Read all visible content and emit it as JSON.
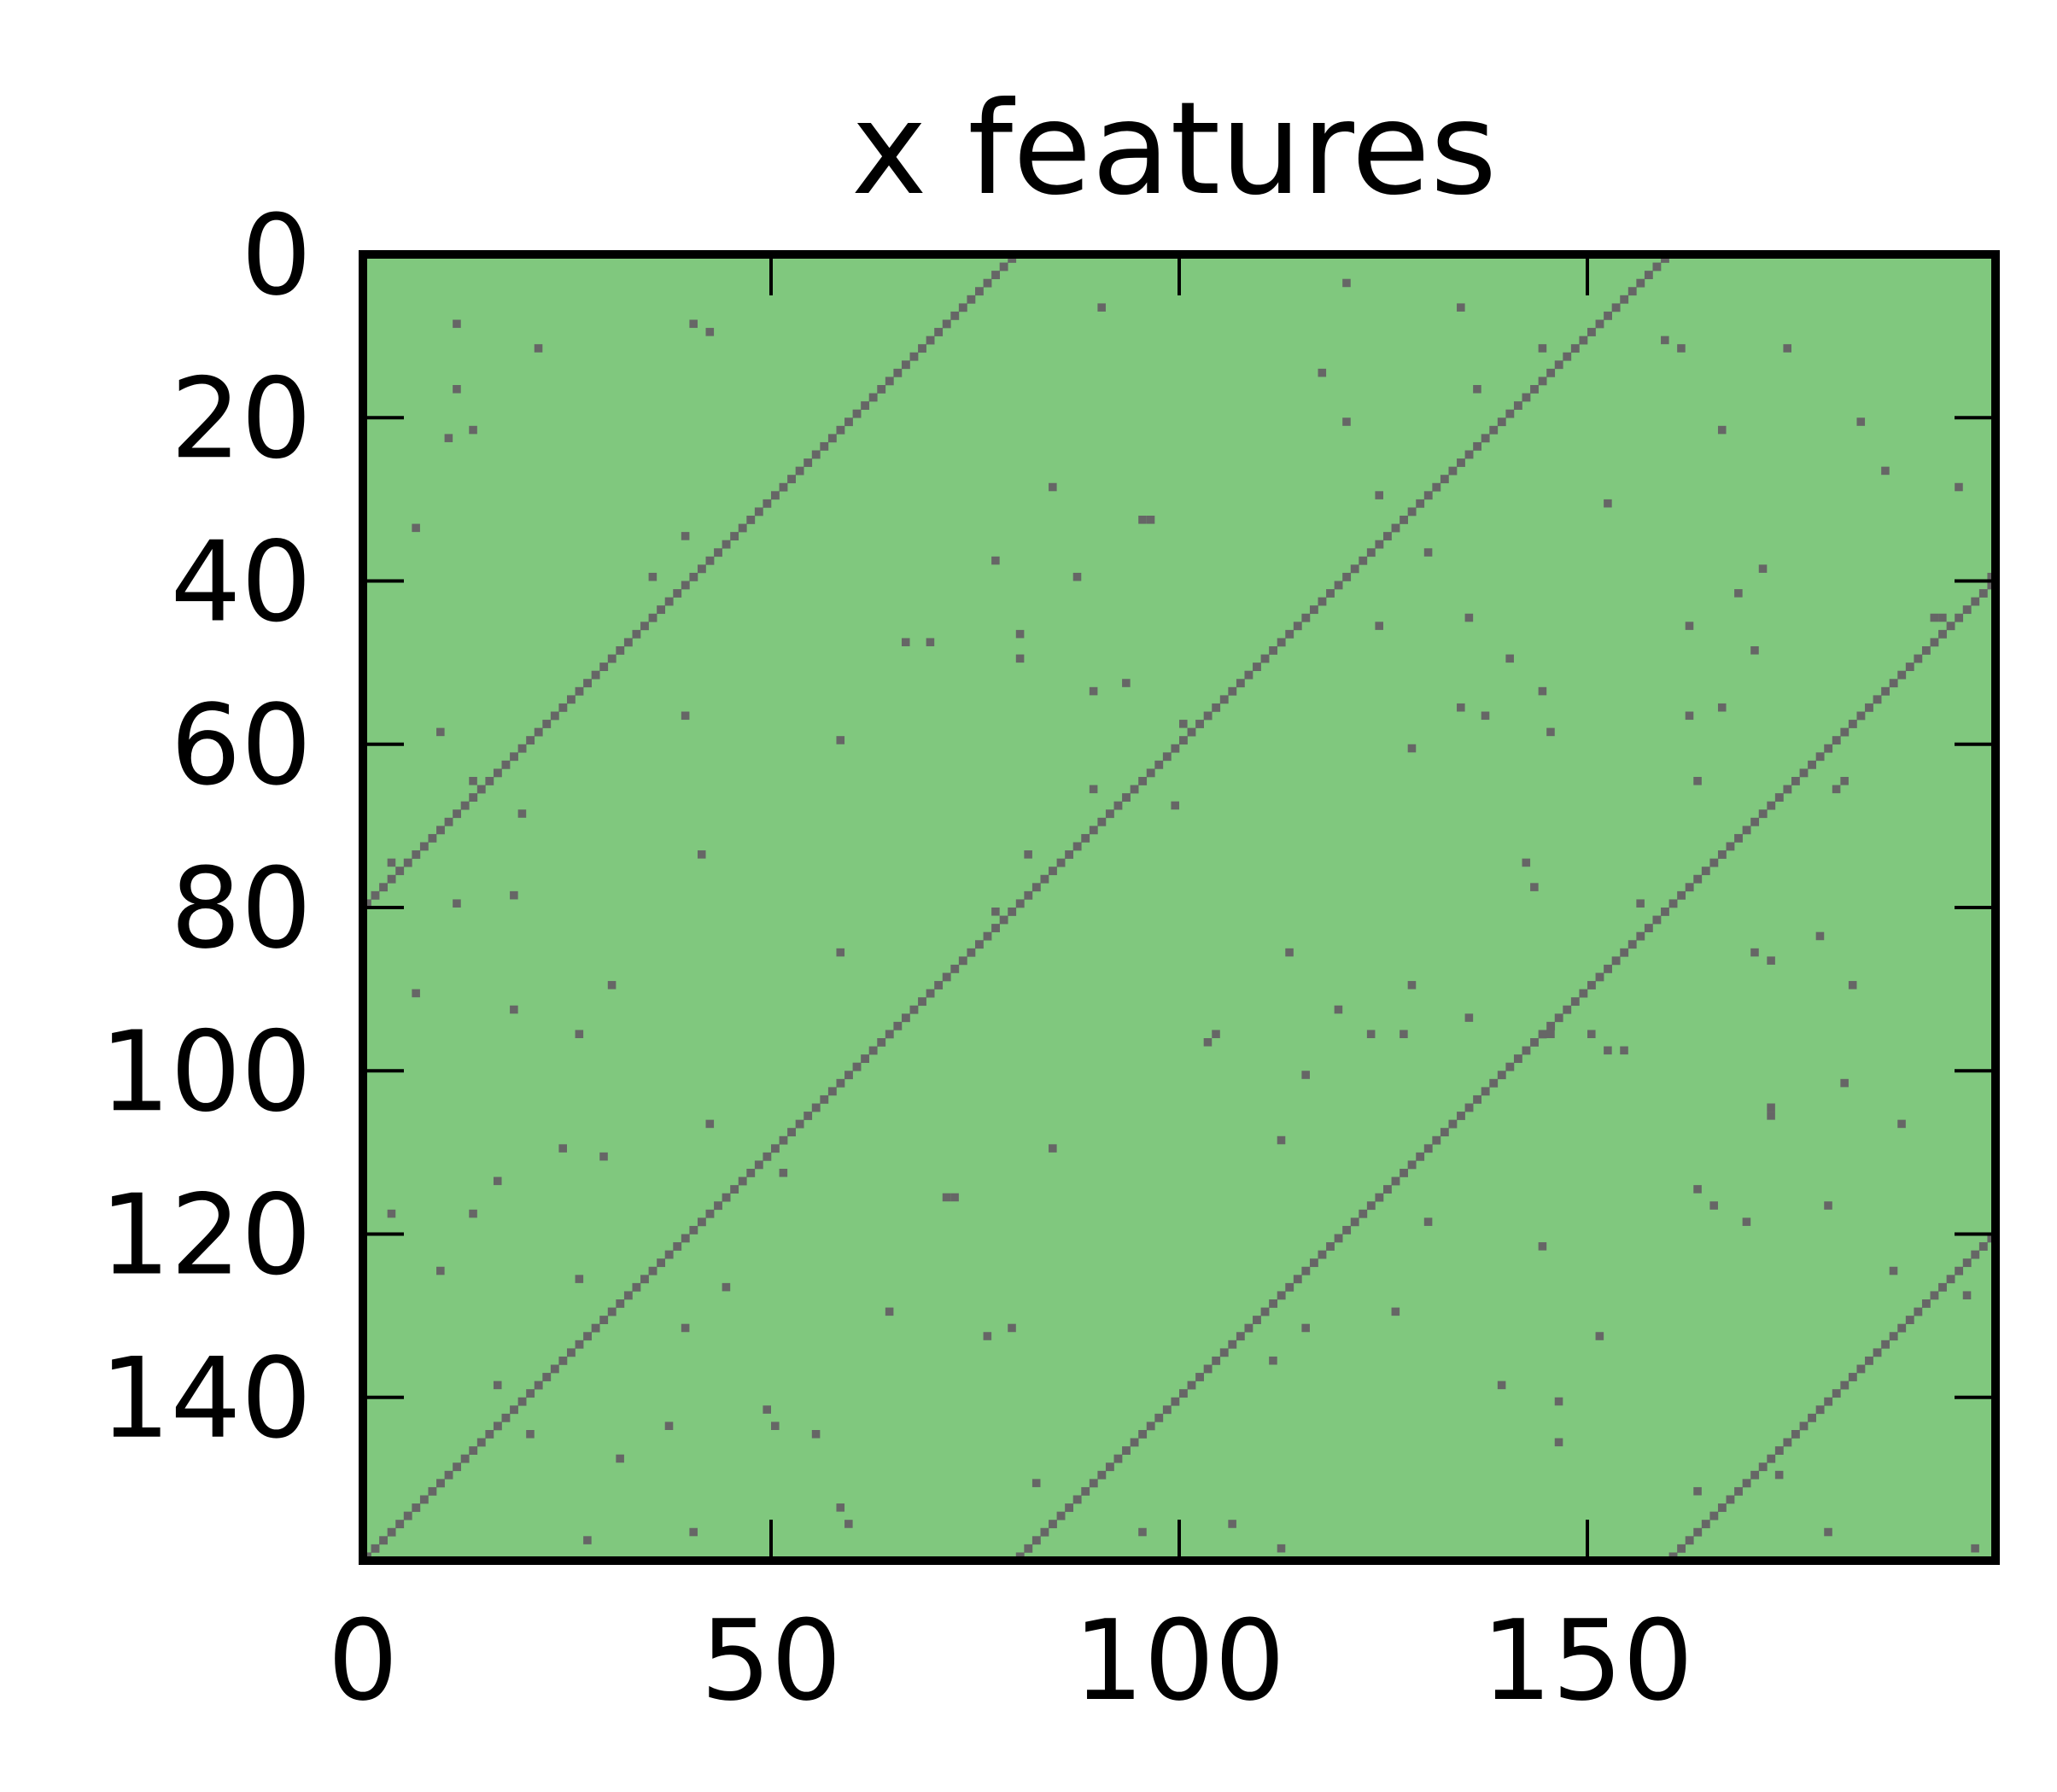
{
  "chart_data": {
    "type": "heatmap",
    "title": "x features",
    "xlabel": "",
    "ylabel": "",
    "x_range": [
      0,
      200
    ],
    "y_range": [
      0,
      160
    ],
    "y_inverted": true,
    "grid": false,
    "x_ticks": [
      {
        "value": 0,
        "label": "0"
      },
      {
        "value": 50,
        "label": "50"
      },
      {
        "value": 100,
        "label": "100"
      },
      {
        "value": 150,
        "label": "150"
      }
    ],
    "y_ticks": [
      {
        "value": 0,
        "label": "0"
      },
      {
        "value": 20,
        "label": "20"
      },
      {
        "value": 40,
        "label": "40"
      },
      {
        "value": 60,
        "label": "60"
      },
      {
        "value": 80,
        "label": "80"
      },
      {
        "value": 100,
        "label": "100"
      },
      {
        "value": 120,
        "label": "120"
      },
      {
        "value": 140,
        "label": "140"
      }
    ],
    "background_color": "#80c87e",
    "cell_color": "#666666",
    "diagonal_bands": [
      {
        "row_start": 0,
        "row_end": 79,
        "col_at_row0": 79,
        "slope": -1
      },
      {
        "row_start": 0,
        "row_end": 159,
        "col_at_row0": 159,
        "slope": -1
      },
      {
        "row_start": 40,
        "row_end": 159,
        "col_at_row0": 239,
        "slope": -1
      },
      {
        "row_start": 120,
        "row_end": 159,
        "col_at_row0": 319,
        "slope": -1
      }
    ],
    "scatter_cells": [
      [
        11,
        8
      ],
      [
        21,
        11
      ],
      [
        40,
        8
      ],
      [
        42,
        9
      ],
      [
        90,
        6
      ],
      [
        120,
        3
      ],
      [
        134,
        6
      ],
      [
        159,
        10
      ],
      [
        161,
        11
      ],
      [
        174,
        11
      ],
      [
        11,
        16
      ],
      [
        10,
        22
      ],
      [
        13,
        21
      ],
      [
        117,
        14
      ],
      [
        120,
        20
      ],
      [
        136,
        16
      ],
      [
        144,
        11
      ],
      [
        166,
        21
      ],
      [
        183,
        20
      ],
      [
        186,
        26
      ],
      [
        6,
        33
      ],
      [
        84,
        28
      ],
      [
        95,
        32
      ],
      [
        96,
        32
      ],
      [
        124,
        29
      ],
      [
        152,
        30
      ],
      [
        195,
        28
      ],
      [
        39,
        34
      ],
      [
        35,
        39
      ],
      [
        77,
        37
      ],
      [
        87,
        39
      ],
      [
        130,
        36
      ],
      [
        171,
        38
      ],
      [
        162,
        45
      ],
      [
        168,
        41
      ],
      [
        199,
        39
      ],
      [
        66,
        47
      ],
      [
        69,
        47
      ],
      [
        80,
        46
      ],
      [
        80,
        49
      ],
      [
        124,
        45
      ],
      [
        135,
        44
      ],
      [
        140,
        49
      ],
      [
        170,
        48
      ],
      [
        192,
        44
      ],
      [
        193,
        44
      ],
      [
        39,
        56
      ],
      [
        58,
        59
      ],
      [
        93,
        52
      ],
      [
        89,
        53
      ],
      [
        100,
        57
      ],
      [
        128,
        60
      ],
      [
        134,
        55
      ],
      [
        137,
        56
      ],
      [
        144,
        53
      ],
      [
        162,
        56
      ],
      [
        166,
        55
      ],
      [
        145,
        58
      ],
      [
        9,
        58
      ],
      [
        13,
        64
      ],
      [
        19,
        68
      ],
      [
        41,
        73
      ],
      [
        89,
        65
      ],
      [
        99,
        67
      ],
      [
        163,
        64
      ],
      [
        180,
        65
      ],
      [
        181,
        64
      ],
      [
        11,
        79
      ],
      [
        18,
        78
      ],
      [
        3,
        74
      ],
      [
        81,
        73
      ],
      [
        77,
        80
      ],
      [
        142,
        74
      ],
      [
        143,
        77
      ],
      [
        156,
        79
      ],
      [
        58,
        85
      ],
      [
        6,
        90
      ],
      [
        18,
        92
      ],
      [
        30,
        89
      ],
      [
        26,
        95
      ],
      [
        113,
        85
      ],
      [
        128,
        89
      ],
      [
        170,
        85
      ],
      [
        172,
        86
      ],
      [
        178,
        83
      ],
      [
        182,
        89
      ],
      [
        103,
        96
      ],
      [
        104,
        95
      ],
      [
        115,
        100
      ],
      [
        119,
        92
      ],
      [
        123,
        95
      ],
      [
        127,
        95
      ],
      [
        135,
        93
      ],
      [
        145,
        95
      ],
      [
        152,
        97
      ],
      [
        154,
        97
      ],
      [
        150,
        95
      ],
      [
        42,
        106
      ],
      [
        24,
        109
      ],
      [
        29,
        110
      ],
      [
        51,
        112
      ],
      [
        84,
        109
      ],
      [
        112,
        108
      ],
      [
        172,
        104
      ],
      [
        172,
        105
      ],
      [
        188,
        106
      ],
      [
        181,
        101
      ],
      [
        16,
        113
      ],
      [
        3,
        117
      ],
      [
        13,
        117
      ],
      [
        71,
        115
      ],
      [
        72,
        115
      ],
      [
        130,
        118
      ],
      [
        144,
        121
      ],
      [
        163,
        114
      ],
      [
        169,
        118
      ],
      [
        165,
        116
      ],
      [
        179,
        116
      ],
      [
        9,
        124
      ],
      [
        26,
        125
      ],
      [
        44,
        126
      ],
      [
        39,
        131
      ],
      [
        64,
        129
      ],
      [
        76,
        132
      ],
      [
        79,
        131
      ],
      [
        115,
        131
      ],
      [
        126,
        129
      ],
      [
        151,
        132
      ],
      [
        187,
        124
      ],
      [
        196,
        127
      ],
      [
        16,
        138
      ],
      [
        20,
        144
      ],
      [
        37,
        143
      ],
      [
        49,
        141
      ],
      [
        50,
        143
      ],
      [
        55,
        144
      ],
      [
        31,
        147
      ],
      [
        111,
        135
      ],
      [
        139,
        138
      ],
      [
        146,
        140
      ],
      [
        146,
        145
      ],
      [
        82,
        150
      ],
      [
        58,
        153
      ],
      [
        59,
        155
      ],
      [
        27,
        157
      ],
      [
        40,
        156
      ],
      [
        95,
        156
      ],
      [
        106,
        155
      ],
      [
        112,
        158
      ],
      [
        163,
        151
      ],
      [
        173,
        149
      ],
      [
        197,
        158
      ],
      [
        179,
        156
      ]
    ]
  }
}
